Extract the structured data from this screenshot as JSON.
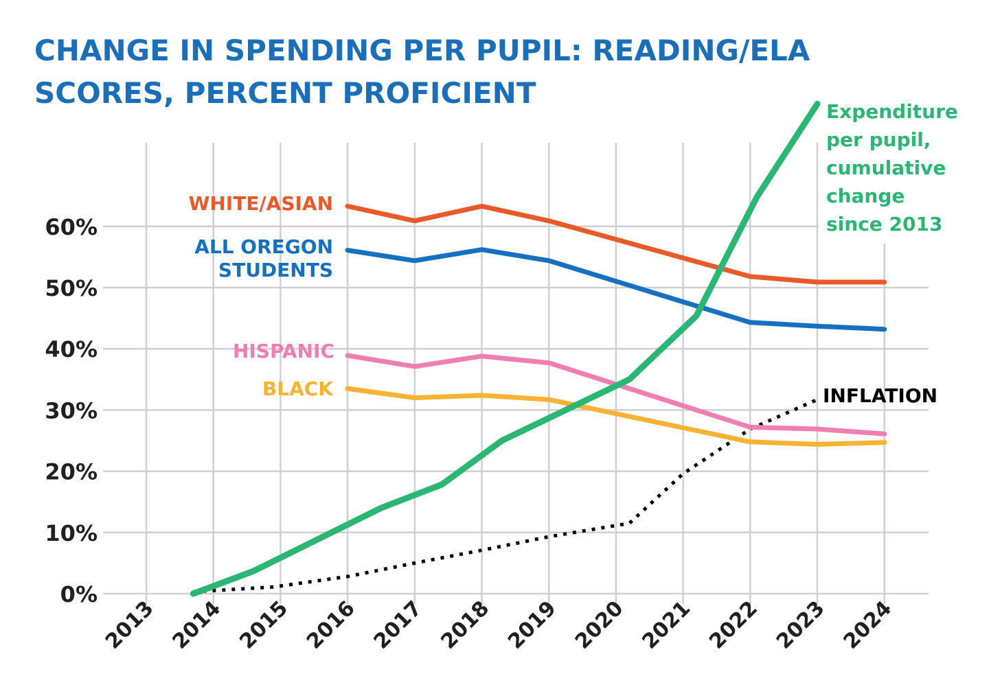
{
  "chart_data": {
    "type": "line",
    "title_lines": [
      "CHANGE IN SPENDING PER PUPIL: READING/ELA",
      "SCORES, PERCENT PROFICIENT"
    ],
    "xlabel": "",
    "ylabel": "",
    "x_ticks": [
      "2013",
      "2014",
      "2015",
      "2016",
      "2017",
      "2018",
      "2019",
      "2020",
      "2021",
      "2022",
      "2023",
      "2024"
    ],
    "y_ticks": [
      "0%",
      "10%",
      "20%",
      "30%",
      "40%",
      "50%",
      "60%"
    ],
    "xlim": [
      2013,
      2024
    ],
    "ylim": [
      0,
      60
    ],
    "grid": true,
    "series": [
      {
        "name": "WHITE/ASIAN",
        "color": "#e85a2a",
        "style": "solid",
        "x": [
          2016,
          2017,
          2018,
          2019,
          2022,
          2023,
          2024
        ],
        "y": [
          63.3,
          60.9,
          63.3,
          60.9,
          51.8,
          50.9,
          50.9
        ]
      },
      {
        "name": "ALL OREGON STUDENTS",
        "label_lines": [
          "ALL OREGON",
          "STUDENTS"
        ],
        "color": "#1570c0",
        "style": "solid",
        "x": [
          2016,
          2017,
          2018,
          2019,
          2022,
          2023,
          2024
        ],
        "y": [
          56.1,
          54.4,
          56.2,
          54.4,
          44.3,
          43.7,
          43.2
        ]
      },
      {
        "name": "HISPANIC",
        "color": "#f07fb0",
        "style": "solid",
        "x": [
          2016,
          2017,
          2018,
          2019,
          2022,
          2023,
          2024
        ],
        "y": [
          38.9,
          37.1,
          38.8,
          37.7,
          27.2,
          26.9,
          26.1
        ]
      },
      {
        "name": "BLACK",
        "color": "#f9b233",
        "style": "solid",
        "x": [
          2016,
          2017,
          2018,
          2019,
          2022,
          2023,
          2024
        ],
        "y": [
          33.5,
          32.0,
          32.4,
          31.7,
          24.8,
          24.4,
          24.7
        ]
      },
      {
        "name": "Expenditure per pupil, cumulative change since 2013",
        "label_lines": [
          "Expenditure",
          "per pupil,",
          "cumulative",
          "change",
          "since 2013"
        ],
        "color": "#2bb673",
        "style": "solid",
        "x": [
          2013.7,
          2014.6,
          2016.5,
          2017.4,
          2018.3,
          2020.2,
          2021.2,
          2022.1,
          2023.0
        ],
        "y": [
          0,
          3.7,
          14.0,
          17.8,
          25.0,
          35.0,
          45.4,
          64.8,
          80.0
        ]
      },
      {
        "name": "INFLATION",
        "color": "#000000",
        "style": "dotted",
        "x": [
          2013.7,
          2014.9,
          2016,
          2017,
          2018,
          2019,
          2020.2,
          2021,
          2022,
          2023
        ],
        "y": [
          0.3,
          1.1,
          2.8,
          5.0,
          7.1,
          9.3,
          11.5,
          19.6,
          26.9,
          31.7
        ]
      }
    ]
  }
}
